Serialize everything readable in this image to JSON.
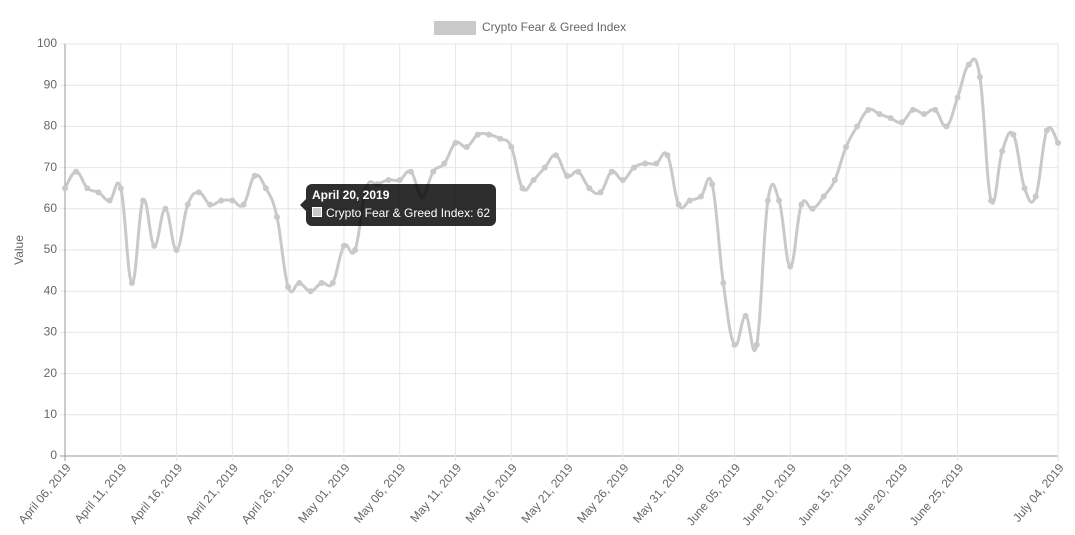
{
  "chart_data": {
    "type": "line",
    "y_label": "Value",
    "x": [
      "2019-04-06",
      "2019-04-07",
      "2019-04-08",
      "2019-04-09",
      "2019-04-10",
      "2019-04-11",
      "2019-04-12",
      "2019-04-13",
      "2019-04-14",
      "2019-04-15",
      "2019-04-16",
      "2019-04-17",
      "2019-04-18",
      "2019-04-19",
      "2019-04-20",
      "2019-04-21",
      "2019-04-22",
      "2019-04-23",
      "2019-04-24",
      "2019-04-25",
      "2019-04-26",
      "2019-04-27",
      "2019-04-28",
      "2019-04-29",
      "2019-04-30",
      "2019-05-01",
      "2019-05-02",
      "2019-05-03",
      "2019-05-04",
      "2019-05-05",
      "2019-05-06",
      "2019-05-07",
      "2019-05-08",
      "2019-05-09",
      "2019-05-10",
      "2019-05-11",
      "2019-05-12",
      "2019-05-13",
      "2019-05-14",
      "2019-05-15",
      "2019-05-16",
      "2019-05-17",
      "2019-05-18",
      "2019-05-19",
      "2019-05-20",
      "2019-05-21",
      "2019-05-22",
      "2019-05-23",
      "2019-05-24",
      "2019-05-25",
      "2019-05-26",
      "2019-05-27",
      "2019-05-28",
      "2019-05-29",
      "2019-05-30",
      "2019-05-31",
      "2019-06-01",
      "2019-06-02",
      "2019-06-03",
      "2019-06-04",
      "2019-06-05",
      "2019-06-06",
      "2019-06-07",
      "2019-06-08",
      "2019-06-09",
      "2019-06-10",
      "2019-06-11",
      "2019-06-12",
      "2019-06-13",
      "2019-06-14",
      "2019-06-15",
      "2019-06-16",
      "2019-06-17",
      "2019-06-18",
      "2019-06-19",
      "2019-06-20",
      "2019-06-21",
      "2019-06-22",
      "2019-06-23",
      "2019-06-24",
      "2019-06-25",
      "2019-06-26",
      "2019-06-27",
      "2019-06-28",
      "2019-06-29",
      "2019-06-30",
      "2019-07-01",
      "2019-07-02",
      "2019-07-03",
      "2019-07-04"
    ],
    "series": [
      {
        "name": "Crypto Fear & Greed Index",
        "color": "#c9c9c9",
        "values": [
          65,
          69,
          65,
          64,
          62,
          65,
          42,
          62,
          51,
          60,
          50,
          61,
          64,
          61,
          62,
          62,
          61,
          68,
          65,
          58,
          41,
          42,
          40,
          42,
          42,
          51,
          50,
          65,
          66,
          67,
          67,
          69,
          63,
          69,
          71,
          76,
          75,
          78,
          78,
          77,
          75,
          65,
          67,
          70,
          73,
          68,
          69,
          65,
          64,
          69,
          67,
          70,
          71,
          71,
          73,
          61,
          62,
          63,
          66,
          42,
          27,
          34,
          27,
          62,
          62,
          46,
          61,
          60,
          63,
          67,
          75,
          80,
          84,
          83,
          82,
          81,
          84,
          83,
          84,
          80,
          87,
          95,
          92,
          62,
          74,
          78,
          65,
          63,
          79,
          76
        ]
      }
    ],
    "xlim": [
      "2019-04-06",
      "2019-07-04"
    ],
    "xticks": [
      {
        "value": "2019-04-06",
        "label": "April 06, 2019"
      },
      {
        "value": "2019-04-11",
        "label": "April 11, 2019"
      },
      {
        "value": "2019-04-16",
        "label": "April 16, 2019"
      },
      {
        "value": "2019-04-21",
        "label": "April 21, 2019"
      },
      {
        "value": "2019-04-26",
        "label": "April 26, 2019"
      },
      {
        "value": "2019-05-01",
        "label": "May 01, 2019"
      },
      {
        "value": "2019-05-06",
        "label": "May 06, 2019"
      },
      {
        "value": "2019-05-11",
        "label": "May 11, 2019"
      },
      {
        "value": "2019-05-16",
        "label": "May 16, 2019"
      },
      {
        "value": "2019-05-21",
        "label": "May 21, 2019"
      },
      {
        "value": "2019-05-26",
        "label": "May 26, 2019"
      },
      {
        "value": "2019-05-31",
        "label": "May 31, 2019"
      },
      {
        "value": "2019-06-05",
        "label": "June 05, 2019"
      },
      {
        "value": "2019-06-10",
        "label": "June 10, 2019"
      },
      {
        "value": "2019-06-15",
        "label": "June 15, 2019"
      },
      {
        "value": "2019-06-20",
        "label": "June 20, 2019"
      },
      {
        "value": "2019-06-25",
        "label": "June 25, 2019"
      },
      {
        "value": "2019-07-04",
        "label": "July 04, 2019"
      }
    ],
    "ylim": [
      0,
      100
    ],
    "yticks": [
      0,
      10,
      20,
      30,
      40,
      50,
      60,
      70,
      80,
      90,
      100
    ],
    "grid": true,
    "tooltip": {
      "title": "April 20, 2019",
      "label": "Crypto Fear & Greed Index: 62"
    }
  }
}
